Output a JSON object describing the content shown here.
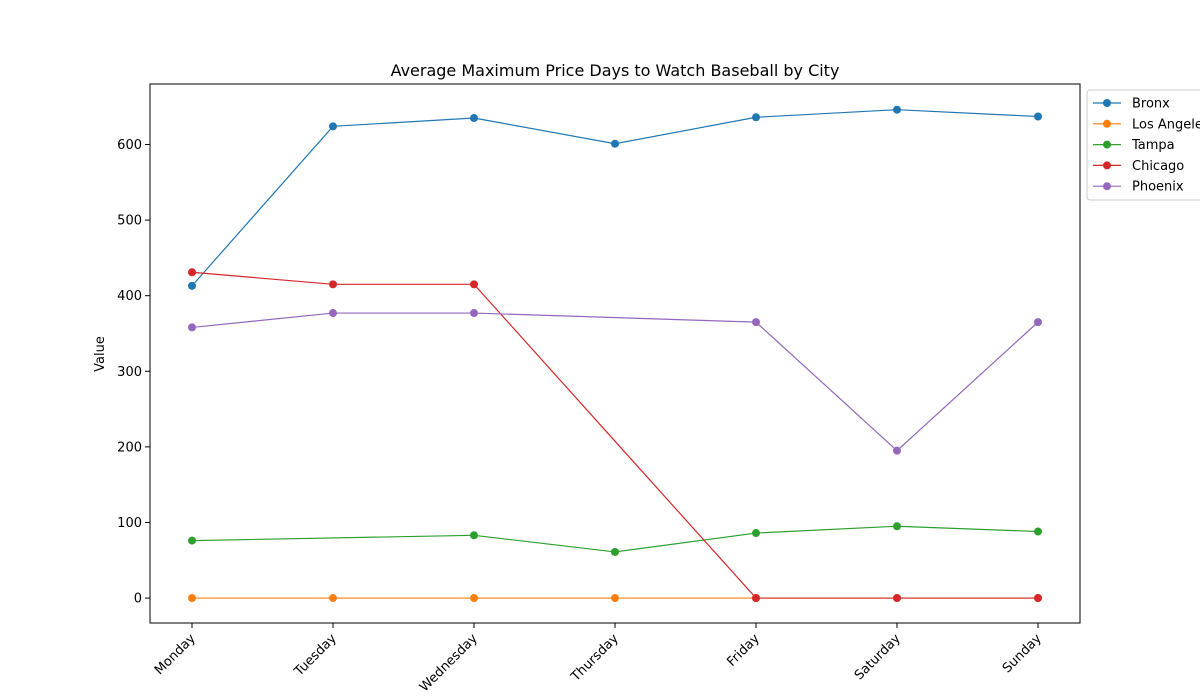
{
  "chart_data": {
    "type": "line",
    "title": "Average Maximum Price Days to Watch Baseball by City",
    "xlabel": "",
    "ylabel": "Value",
    "categories": [
      "Monday",
      "Tuesday",
      "Wednesday",
      "Thursday",
      "Friday",
      "Saturday",
      "Sunday"
    ],
    "ylim": [
      -33,
      680
    ],
    "yticks": [
      0,
      100,
      200,
      300,
      400,
      500,
      600
    ],
    "grid": false,
    "legend": "outside-top-right",
    "series": [
      {
        "name": "Bronx",
        "color": "#1f77b4",
        "values": [
          413,
          624,
          635,
          601,
          636,
          646,
          637
        ]
      },
      {
        "name": "Los Angeles",
        "color": "#ff7f0e",
        "values": [
          0,
          0,
          0,
          0,
          0,
          0,
          0
        ]
      },
      {
        "name": "Tampa",
        "color": "#2ca02c",
        "values": [
          76,
          null,
          83,
          61,
          86,
          95,
          88
        ]
      },
      {
        "name": "Chicago",
        "color": "#d62728",
        "values": [
          431,
          415,
          415,
          null,
          0,
          0,
          0
        ]
      },
      {
        "name": "Phoenix",
        "color": "#9467bd",
        "values": [
          358,
          377,
          377,
          null,
          365,
          195,
          365
        ]
      }
    ]
  }
}
